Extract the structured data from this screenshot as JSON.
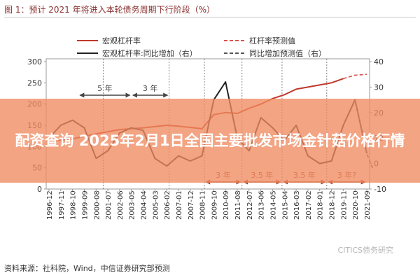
{
  "figure": {
    "title": "图 1：预计 2021 年将进入本轮债务周期下行阶段（%）",
    "source": "资料来源：社科院，Wind，中信证券研究部预测",
    "watermark": "CITICS债务研究"
  },
  "overlay": {
    "headline": "配资查询 2025年2月1日全国主要批发市场金针菇价格行情"
  },
  "chart_data": {
    "type": "line",
    "x": [
      "1996-12",
      "1997-11",
      "1998-10",
      "1999-09",
      "2000-08",
      "2001-07",
      "2002-06",
      "2003-05",
      "2004-04",
      "2005-03",
      "2006-02",
      "2007-01",
      "2007-12",
      "2008-11",
      "2009-10",
      "2010-09",
      "2011-08",
      "2012-07",
      "2013-06",
      "2014-05",
      "2015-04",
      "2016-03",
      "2017-02",
      "2018-01",
      "2018-12",
      "2019-11",
      "2020-10",
      "2021-09"
    ],
    "y_left_ticks": [
      0,
      50,
      100,
      150,
      200,
      250,
      300
    ],
    "y_right_ticks": [
      -10,
      0,
      10,
      20,
      30,
      40
    ],
    "ylim_left": [
      0,
      300
    ],
    "ylim_right": [
      -10,
      40
    ],
    "legend": [
      {
        "label": "宏观杠杆率",
        "color": "#c0392b",
        "style": "solid"
      },
      {
        "label": "杠杆率预测值",
        "color": "#d9534f",
        "style": "dashed"
      },
      {
        "label": "宏观杠杆率:同比增加（右）",
        "color": "#222222",
        "style": "solid"
      },
      {
        "label": "同比增加预测值（右）",
        "color": "#555555",
        "style": "dashed"
      }
    ],
    "series": [
      {
        "name": "宏观杠杆率",
        "axis": "left",
        "color": "#c0392b",
        "style": "solid",
        "points": [
          [
            0,
            112
          ],
          [
            2,
            118
          ],
          [
            4,
            130
          ],
          [
            6,
            140
          ],
          [
            8,
            144
          ],
          [
            10,
            150
          ],
          [
            11,
            148
          ],
          [
            12,
            145
          ],
          [
            13,
            142
          ],
          [
            14,
            175
          ],
          [
            15,
            180
          ],
          [
            16,
            178
          ],
          [
            17,
            190
          ],
          [
            18,
            200
          ],
          [
            19,
            213
          ],
          [
            20,
            222
          ],
          [
            21,
            235
          ],
          [
            22,
            240
          ],
          [
            23,
            245
          ],
          [
            24,
            250
          ],
          [
            25,
            260
          ]
        ]
      },
      {
        "name": "杠杆率预测值",
        "axis": "left",
        "color": "#d9534f",
        "style": "dashed",
        "points": [
          [
            25,
            260
          ],
          [
            26,
            268
          ],
          [
            27,
            270
          ]
        ]
      },
      {
        "name": "宏观杠杆率:同比增加（右）",
        "axis": "right",
        "color": "#222222",
        "style": "solid",
        "points": [
          [
            0,
            10
          ],
          [
            1,
            15
          ],
          [
            2,
            17
          ],
          [
            3,
            14
          ],
          [
            4,
            2
          ],
          [
            5,
            5
          ],
          [
            6,
            12
          ],
          [
            7,
            14
          ],
          [
            8,
            13
          ],
          [
            9,
            2
          ],
          [
            10,
            -1
          ],
          [
            11,
            3
          ],
          [
            12,
            1
          ],
          [
            13,
            3
          ],
          [
            14,
            25
          ],
          [
            15,
            32
          ],
          [
            16,
            10
          ],
          [
            17,
            5
          ],
          [
            18,
            18
          ],
          [
            19,
            14
          ],
          [
            20,
            9
          ],
          [
            21,
            15
          ],
          [
            22,
            3
          ],
          [
            23,
            0
          ],
          [
            24,
            1
          ],
          [
            25,
            15
          ],
          [
            26,
            25
          ],
          [
            27,
            4
          ]
        ]
      },
      {
        "name": "同比增加预测值（右）",
        "axis": "right",
        "color": "#555555",
        "style": "dashed",
        "points": [
          [
            26,
            25
          ],
          [
            27,
            4
          ],
          [
            27.5,
            -2
          ]
        ]
      }
    ],
    "annotations": [
      {
        "text": "5 年",
        "from": 2.5,
        "to": 7,
        "level": "upper"
      },
      {
        "text": "3 年",
        "from": 7,
        "to": 10.2,
        "level": "upper"
      },
      {
        "text": "3 年",
        "from": 13.2,
        "to": 16.4,
        "level": "lower"
      },
      {
        "text": "3.5 年",
        "from": 16.4,
        "to": 19.8,
        "level": "lower"
      },
      {
        "text": "3.5 年",
        "from": 19.8,
        "to": 23.6,
        "level": "lower"
      },
      {
        "text": "3 年?",
        "from": 23.6,
        "to": 27,
        "level": "lower"
      }
    ],
    "vertical_markers": [
      4.6,
      10.2,
      13.2,
      16.4,
      19.8,
      23.6
    ]
  }
}
